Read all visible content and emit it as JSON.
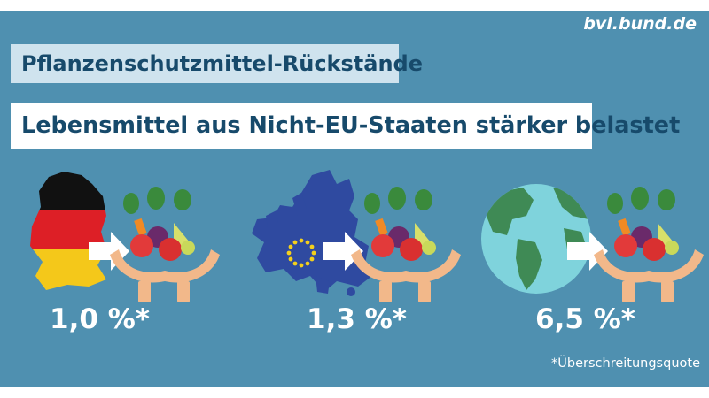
{
  "source": "bvl.bund.de",
  "header": {
    "title": "Pflanzenschutzmittel-Rückstände",
    "subtitle": "Lebensmittel aus Nicht-EU-Staaten stärker belastet"
  },
  "panels": [
    {
      "icon": "germany-flag-map-icon",
      "value": "1,0 %*"
    },
    {
      "icon": "eu-map-icon",
      "value": "1,3 %*"
    },
    {
      "icon": "globe-icon",
      "value": "6,5 %*"
    }
  ],
  "footnote": "*Überschreitungsquote",
  "colors": {
    "background": "#4f90b0",
    "title_box": "#cfe3ee",
    "text_dark": "#174a6b",
    "eu_blue": "#2f4aa0",
    "globe_ocean": "#7fd3dc",
    "globe_land": "#3f8a55"
  }
}
